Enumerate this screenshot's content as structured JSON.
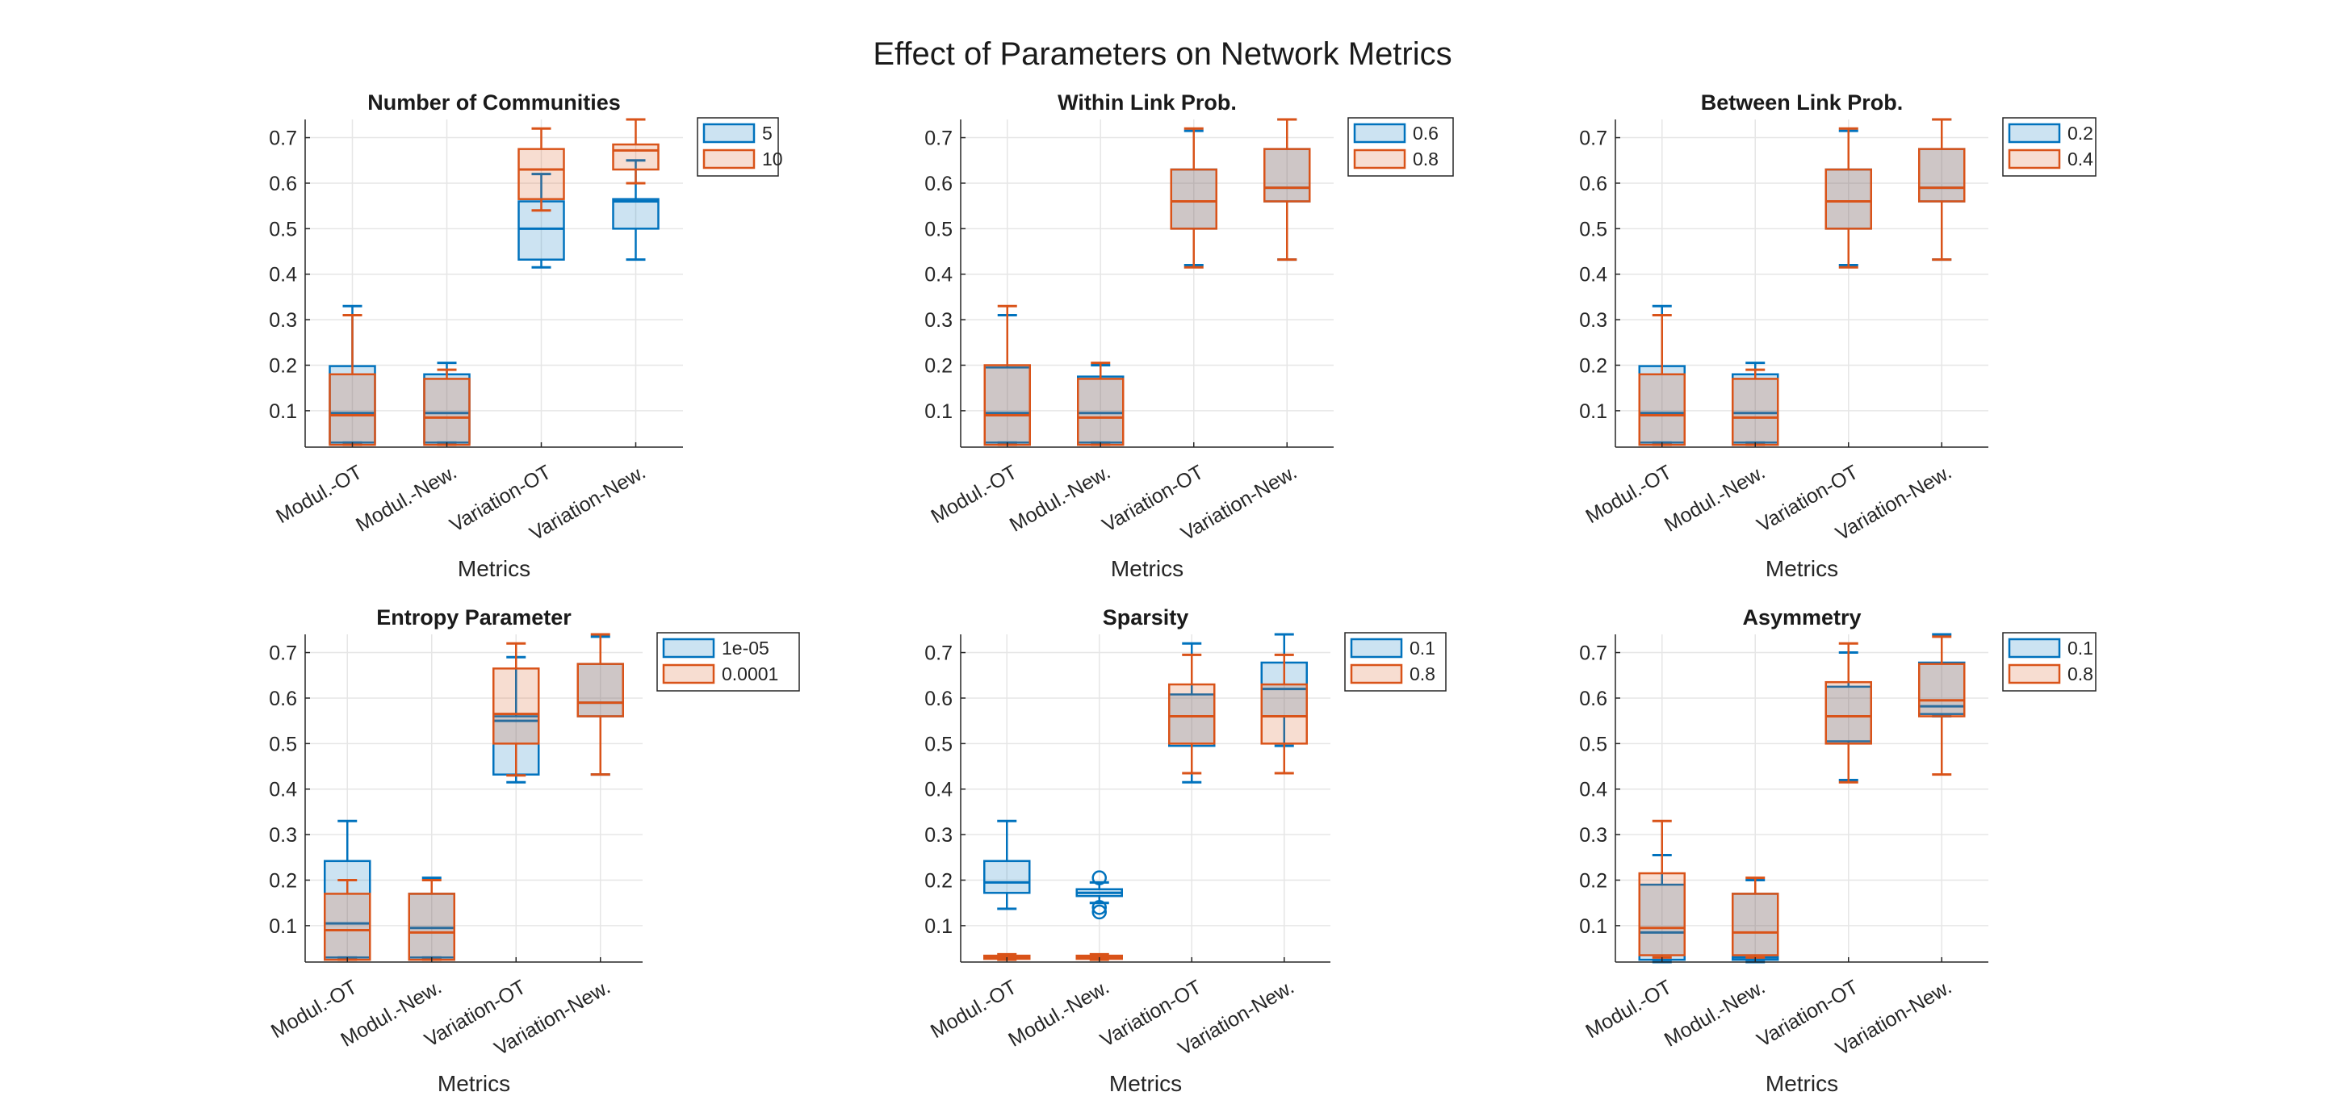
{
  "figure": {
    "title": "Effect of Parameters on Network Metrics",
    "colors": {
      "blue": "#0072BD",
      "orange": "#D95319",
      "overlap": "#cdc1c5"
    }
  },
  "chart_data": [
    {
      "type": "box",
      "title": "Number of Communities",
      "xlabel": "Metrics",
      "ylabel": "",
      "categories": [
        "Modul.-OT",
        "Modul.-New.",
        "Variation-OT",
        "Variation-New."
      ],
      "ylim": [
        0.02,
        0.74
      ],
      "yticks": [
        0.1,
        0.2,
        0.3,
        0.4,
        0.5,
        0.6,
        0.7
      ],
      "grid": true,
      "legend_position": "outside-top-right",
      "series": [
        {
          "name": "5",
          "color": "#0072BD",
          "boxes": [
            {
              "whislo": 0.03,
              "q1": 0.03,
              "med": 0.095,
              "q3": 0.198,
              "whishi": 0.33
            },
            {
              "whislo": 0.03,
              "q1": 0.03,
              "med": 0.095,
              "q3": 0.18,
              "whishi": 0.205
            },
            {
              "whislo": 0.415,
              "q1": 0.432,
              "med": 0.5,
              "q3": 0.56,
              "whishi": 0.62
            },
            {
              "whislo": 0.432,
              "q1": 0.5,
              "med": 0.56,
              "q3": 0.565,
              "whishi": 0.65
            }
          ],
          "outliers": []
        },
        {
          "name": "10",
          "color": "#D95319",
          "boxes": [
            {
              "whislo": 0.025,
              "q1": 0.025,
              "med": 0.09,
              "q3": 0.18,
              "whishi": 0.31
            },
            {
              "whislo": 0.025,
              "q1": 0.025,
              "med": 0.085,
              "q3": 0.17,
              "whishi": 0.19
            },
            {
              "whislo": 0.54,
              "q1": 0.565,
              "med": 0.63,
              "q3": 0.675,
              "whishi": 0.72
            },
            {
              "whislo": 0.6,
              "q1": 0.63,
              "med": 0.672,
              "q3": 0.685,
              "whishi": 0.74
            }
          ],
          "outliers": []
        }
      ]
    },
    {
      "type": "box",
      "title": "Within Link Prob.",
      "xlabel": "Metrics",
      "ylabel": "",
      "categories": [
        "Modul.-OT",
        "Modul.-New.",
        "Variation-OT",
        "Variation-New."
      ],
      "ylim": [
        0.02,
        0.74
      ],
      "yticks": [
        0.1,
        0.2,
        0.3,
        0.4,
        0.5,
        0.6,
        0.7
      ],
      "grid": true,
      "legend_position": "outside-top-right",
      "series": [
        {
          "name": "0.6",
          "color": "#0072BD",
          "boxes": [
            {
              "whislo": 0.03,
              "q1": 0.03,
              "med": 0.095,
              "q3": 0.195,
              "whishi": 0.31
            },
            {
              "whislo": 0.03,
              "q1": 0.03,
              "med": 0.095,
              "q3": 0.175,
              "whishi": 0.2
            },
            {
              "whislo": 0.42,
              "q1": 0.5,
              "med": 0.56,
              "q3": 0.63,
              "whishi": 0.715
            },
            {
              "whislo": 0.432,
              "q1": 0.56,
              "med": 0.59,
              "q3": 0.675,
              "whishi": 0.74
            }
          ],
          "outliers": []
        },
        {
          "name": "0.8",
          "color": "#D95319",
          "boxes": [
            {
              "whislo": 0.025,
              "q1": 0.025,
              "med": 0.09,
              "q3": 0.2,
              "whishi": 0.33
            },
            {
              "whislo": 0.025,
              "q1": 0.025,
              "med": 0.085,
              "q3": 0.17,
              "whishi": 0.205
            },
            {
              "whislo": 0.415,
              "q1": 0.5,
              "med": 0.56,
              "q3": 0.63,
              "whishi": 0.72
            },
            {
              "whislo": 0.432,
              "q1": 0.56,
              "med": 0.59,
              "q3": 0.675,
              "whishi": 0.74
            }
          ],
          "outliers": []
        }
      ]
    },
    {
      "type": "box",
      "title": "Between Link Prob.",
      "xlabel": "Metrics",
      "ylabel": "",
      "categories": [
        "Modul.-OT",
        "Modul.-New.",
        "Variation-OT",
        "Variation-New."
      ],
      "ylim": [
        0.02,
        0.74
      ],
      "yticks": [
        0.1,
        0.2,
        0.3,
        0.4,
        0.5,
        0.6,
        0.7
      ],
      "grid": true,
      "legend_position": "outside-top-right",
      "series": [
        {
          "name": "0.2",
          "color": "#0072BD",
          "boxes": [
            {
              "whislo": 0.03,
              "q1": 0.03,
              "med": 0.095,
              "q3": 0.198,
              "whishi": 0.33
            },
            {
              "whislo": 0.03,
              "q1": 0.03,
              "med": 0.095,
              "q3": 0.18,
              "whishi": 0.205
            },
            {
              "whislo": 0.42,
              "q1": 0.5,
              "med": 0.56,
              "q3": 0.63,
              "whishi": 0.715
            },
            {
              "whislo": 0.432,
              "q1": 0.56,
              "med": 0.59,
              "q3": 0.675,
              "whishi": 0.74
            }
          ],
          "outliers": []
        },
        {
          "name": "0.4",
          "color": "#D95319",
          "boxes": [
            {
              "whislo": 0.025,
              "q1": 0.025,
              "med": 0.09,
              "q3": 0.18,
              "whishi": 0.31
            },
            {
              "whislo": 0.025,
              "q1": 0.025,
              "med": 0.085,
              "q3": 0.17,
              "whishi": 0.19
            },
            {
              "whislo": 0.415,
              "q1": 0.5,
              "med": 0.56,
              "q3": 0.63,
              "whishi": 0.72
            },
            {
              "whislo": 0.432,
              "q1": 0.56,
              "med": 0.59,
              "q3": 0.675,
              "whishi": 0.74
            }
          ],
          "outliers": []
        }
      ]
    },
    {
      "type": "box",
      "title": "Entropy Parameter",
      "xlabel": "Metrics",
      "ylabel": "",
      "categories": [
        "Modul.-OT",
        "Modul.-New.",
        "Variation-OT",
        "Variation-New."
      ],
      "ylim": [
        0.02,
        0.74
      ],
      "yticks": [
        0.1,
        0.2,
        0.3,
        0.4,
        0.5,
        0.6,
        0.7
      ],
      "grid": true,
      "legend_position": "outside-top-right",
      "series": [
        {
          "name": "1e-05",
          "color": "#0072BD",
          "boxes": [
            {
              "whislo": 0.03,
              "q1": 0.03,
              "med": 0.105,
              "q3": 0.242,
              "whishi": 0.33
            },
            {
              "whislo": 0.03,
              "q1": 0.03,
              "med": 0.095,
              "q3": 0.17,
              "whishi": 0.205
            },
            {
              "whislo": 0.415,
              "q1": 0.432,
              "med": 0.55,
              "q3": 0.56,
              "whishi": 0.69
            },
            {
              "whislo": 0.432,
              "q1": 0.56,
              "med": 0.59,
              "q3": 0.675,
              "whishi": 0.735
            }
          ],
          "outliers": []
        },
        {
          "name": "0.0001",
          "color": "#D95319",
          "boxes": [
            {
              "whislo": 0.025,
              "q1": 0.025,
              "med": 0.09,
              "q3": 0.17,
              "whishi": 0.2
            },
            {
              "whislo": 0.025,
              "q1": 0.025,
              "med": 0.085,
              "q3": 0.17,
              "whishi": 0.2
            },
            {
              "whislo": 0.43,
              "q1": 0.5,
              "med": 0.565,
              "q3": 0.665,
              "whishi": 0.72
            },
            {
              "whislo": 0.432,
              "q1": 0.56,
              "med": 0.59,
              "q3": 0.675,
              "whishi": 0.74
            }
          ],
          "outliers": []
        }
      ]
    },
    {
      "type": "box",
      "title": "Sparsity",
      "xlabel": "Metrics",
      "ylabel": "",
      "categories": [
        "Modul.-OT",
        "Modul.-New.",
        "Variation-OT",
        "Variation-New."
      ],
      "ylim": [
        0.02,
        0.74
      ],
      "yticks": [
        0.1,
        0.2,
        0.3,
        0.4,
        0.5,
        0.6,
        0.7
      ],
      "grid": true,
      "legend_position": "outside-top-right",
      "series": [
        {
          "name": "0.1",
          "color": "#0072BD",
          "boxes": [
            {
              "whislo": 0.137,
              "q1": 0.172,
              "med": 0.195,
              "q3": 0.242,
              "whishi": 0.33
            },
            {
              "whislo": 0.15,
              "q1": 0.165,
              "med": 0.172,
              "q3": 0.18,
              "whishi": 0.195
            },
            {
              "whislo": 0.415,
              "q1": 0.495,
              "med": 0.56,
              "q3": 0.608,
              "whishi": 0.72
            },
            {
              "whislo": 0.495,
              "q1": 0.56,
              "med": 0.62,
              "q3": 0.678,
              "whishi": 0.74
            }
          ],
          "outliers": [
            [],
            [
              0.205,
              0.13,
              0.14
            ],
            [],
            []
          ]
        },
        {
          "name": "0.8",
          "color": "#D95319",
          "boxes": [
            {
              "whislo": 0.025,
              "q1": 0.027,
              "med": 0.03,
              "q3": 0.034,
              "whishi": 0.037
            },
            {
              "whislo": 0.025,
              "q1": 0.027,
              "med": 0.03,
              "q3": 0.034,
              "whishi": 0.037
            },
            {
              "whislo": 0.435,
              "q1": 0.5,
              "med": 0.56,
              "q3": 0.63,
              "whishi": 0.695
            },
            {
              "whislo": 0.435,
              "q1": 0.5,
              "med": 0.56,
              "q3": 0.63,
              "whishi": 0.695
            }
          ],
          "outliers": []
        }
      ]
    },
    {
      "type": "box",
      "title": "Asymmetry",
      "xlabel": "Metrics",
      "ylabel": "",
      "categories": [
        "Modul.-OT",
        "Modul.-New.",
        "Variation-OT",
        "Variation-New."
      ],
      "ylim": [
        0.02,
        0.74
      ],
      "yticks": [
        0.1,
        0.2,
        0.3,
        0.4,
        0.5,
        0.6,
        0.7
      ],
      "grid": true,
      "legend_position": "outside-top-right",
      "series": [
        {
          "name": "0.1",
          "color": "#0072BD",
          "boxes": [
            {
              "whislo": 0.02,
              "q1": 0.025,
              "med": 0.085,
              "q3": 0.19,
              "whishi": 0.255
            },
            {
              "whislo": 0.02,
              "q1": 0.025,
              "med": 0.03,
              "q3": 0.17,
              "whishi": 0.2
            },
            {
              "whislo": 0.42,
              "q1": 0.505,
              "med": 0.56,
              "q3": 0.625,
              "whishi": 0.7
            },
            {
              "whislo": 0.56,
              "q1": 0.565,
              "med": 0.582,
              "q3": 0.678,
              "whishi": 0.74
            }
          ],
          "outliers": []
        },
        {
          "name": "0.8",
          "color": "#D95319",
          "boxes": [
            {
              "whislo": 0.03,
              "q1": 0.035,
              "med": 0.095,
              "q3": 0.215,
              "whishi": 0.33
            },
            {
              "whislo": 0.03,
              "q1": 0.035,
              "med": 0.085,
              "q3": 0.17,
              "whishi": 0.205
            },
            {
              "whislo": 0.415,
              "q1": 0.5,
              "med": 0.56,
              "q3": 0.635,
              "whishi": 0.72
            },
            {
              "whislo": 0.432,
              "q1": 0.56,
              "med": 0.595,
              "q3": 0.675,
              "whishi": 0.735
            }
          ],
          "outliers": []
        }
      ]
    }
  ]
}
